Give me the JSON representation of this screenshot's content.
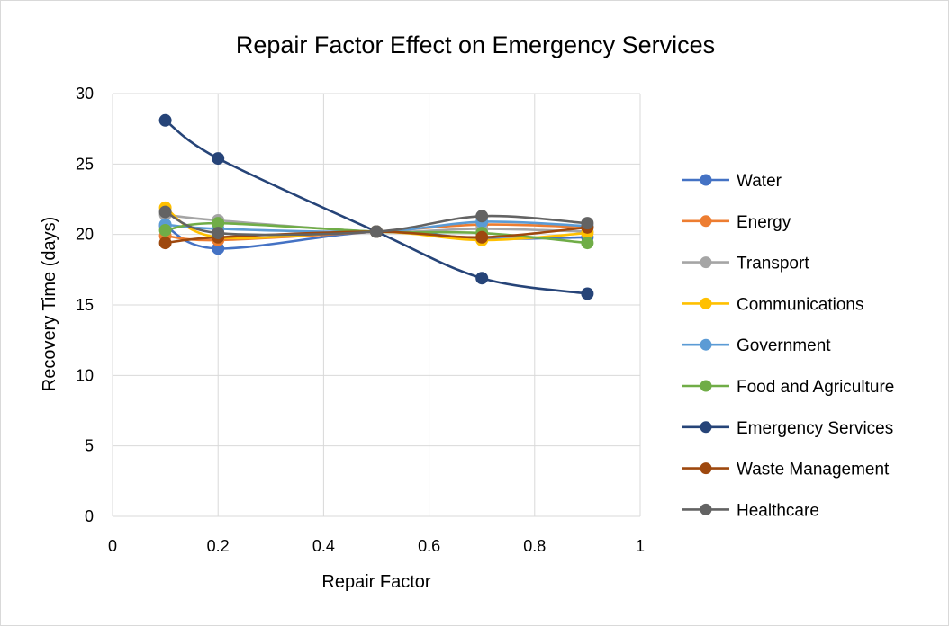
{
  "chart_data": {
    "type": "scatter",
    "title": "Repair Factor Effect on Emergency Services",
    "xlabel": "Repair Factor",
    "ylabel": "Recovery Time (days)",
    "xlim": [
      0,
      1
    ],
    "ylim": [
      0,
      30
    ],
    "x_ticks": [
      0,
      0.2,
      0.4,
      0.6,
      0.8,
      1
    ],
    "x_tick_labels": [
      "0",
      "0.2",
      "0.4",
      "0.6",
      "0.8",
      "1"
    ],
    "y_ticks": [
      0,
      5,
      10,
      15,
      20,
      25,
      30
    ],
    "y_tick_labels": [
      "0",
      "5",
      "10",
      "15",
      "20",
      "25",
      "30"
    ],
    "grid": true,
    "legend_position": "right",
    "smooth_lines": true,
    "x": [
      0.1,
      0.2,
      0.5,
      0.7,
      0.9
    ],
    "series": [
      {
        "name": "Water",
        "color": "#4472C4",
        "values": [
          20.6,
          19.0,
          20.2,
          19.7,
          19.8
        ]
      },
      {
        "name": "Energy",
        "color": "#ED7D31",
        "values": [
          19.9,
          19.6,
          20.2,
          20.7,
          20.5
        ]
      },
      {
        "name": "Transport",
        "color": "#A5A5A5",
        "values": [
          21.4,
          21.0,
          20.2,
          20.4,
          20.2
        ]
      },
      {
        "name": "Communications",
        "color": "#FFC000",
        "values": [
          21.9,
          19.8,
          20.2,
          19.6,
          20.1
        ]
      },
      {
        "name": "Government",
        "color": "#5B9BD5",
        "values": [
          20.7,
          20.4,
          20.2,
          20.9,
          20.6
        ]
      },
      {
        "name": "Food and Agriculture",
        "color": "#70AD47",
        "values": [
          20.3,
          20.8,
          20.2,
          20.1,
          19.4
        ]
      },
      {
        "name": "Emergency Services",
        "color": "#264478",
        "values": [
          28.1,
          25.4,
          20.2,
          16.9,
          15.8
        ]
      },
      {
        "name": "Waste Management",
        "color": "#9E480E",
        "values": [
          19.4,
          19.8,
          20.2,
          19.8,
          20.5
        ]
      },
      {
        "name": "Healthcare",
        "color": "#636363",
        "values": [
          21.6,
          20.1,
          20.2,
          21.3,
          20.8
        ]
      }
    ]
  }
}
